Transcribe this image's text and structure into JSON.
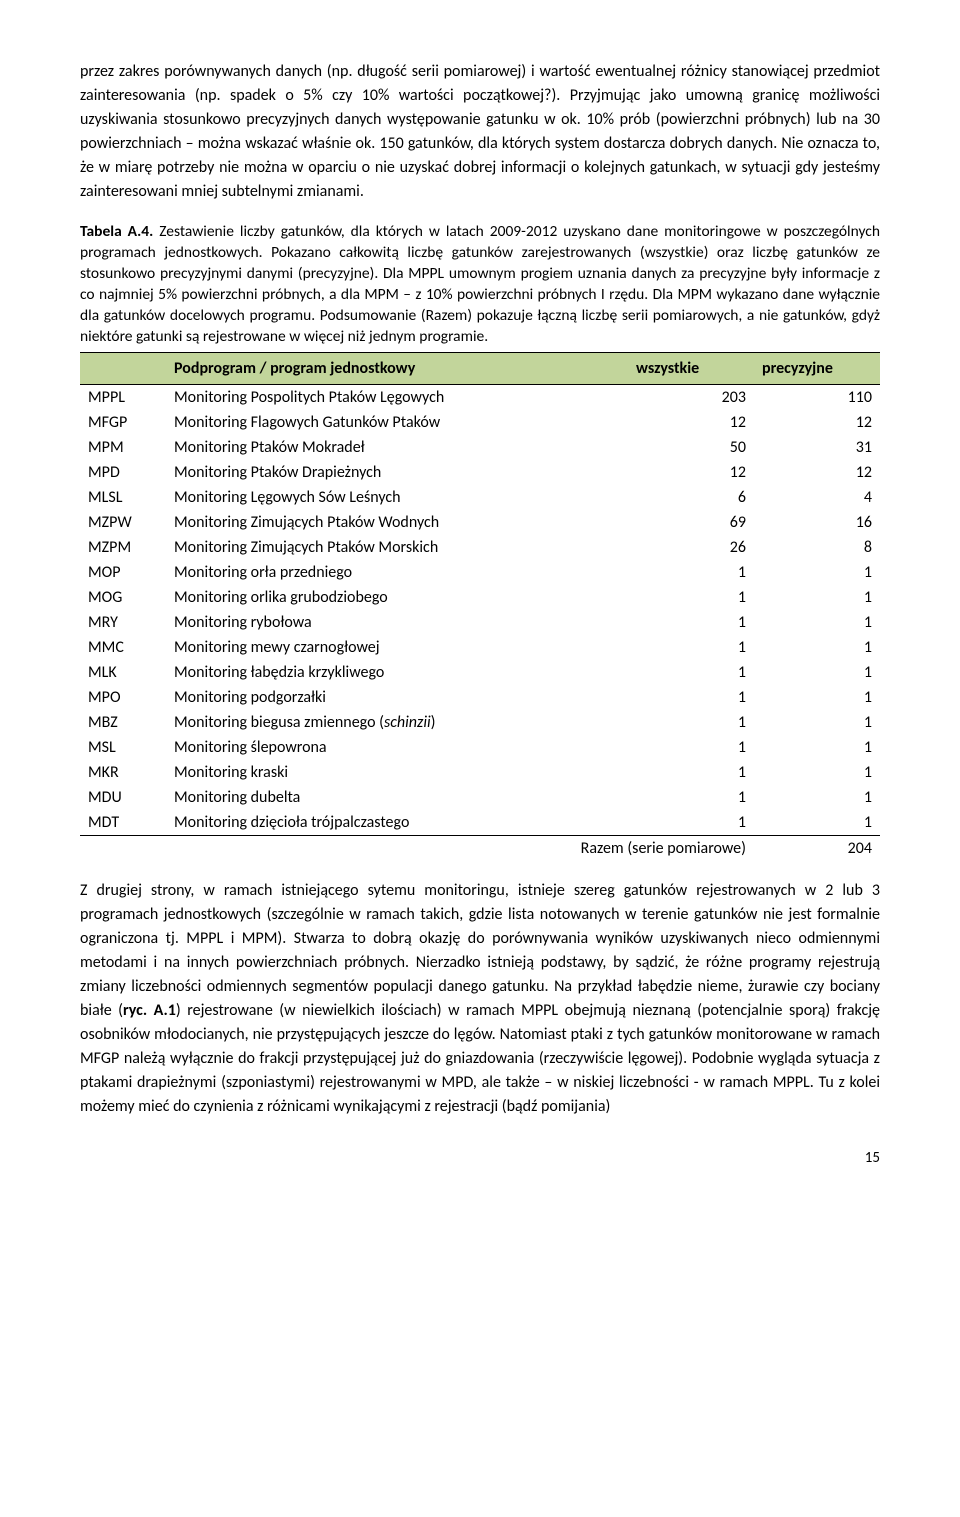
{
  "para1": "przez zakres porównywanych danych (np. długość serii pomiarowej) i wartość ewentualnej różnicy stanowiącej przedmiot zainteresowania (np. spadek o 5% czy 10% wartości początkowej?). Przyjmując jako umowną granicę możliwości uzyskiwania stosunkowo precyzyjnych danych występowanie gatunku w ok. 10% prób (powierzchni próbnych) lub na 30 powierzchniach – można wskazać właśnie ok. 150 gatunków, dla których system dostarcza dobrych danych. Nie oznacza to, że w miarę potrzeby nie można w oparciu o nie uzyskać dobrej informacji o kolejnych gatunkach, w sytuacji gdy jesteśmy zainteresowani mniej subtelnymi zmianami.",
  "caption_bold": "Tabela A.4.",
  "caption_rest": " Zestawienie liczby gatunków, dla których w latach 2009-2012 uzyskano dane monitoringowe w poszczególnych programach jednostkowych. Pokazano całkowitą liczbę gatunków zarejestrowanych (wszystkie) oraz liczbę gatunków ze stosunkowo precyzyjnymi danymi (precyzyjne). Dla MPPL umownym progiem uznania danych za precyzyjne były informacje z co najmniej 5% powierzchni próbnych, a dla MPM – z 10% powierzchni próbnych I rzędu. Dla MPM wykazano dane wyłącznie dla gatunków docelowych programu. Podsumowanie (Razem) pokazuje łączną liczbę serii pomiarowych, a nie gatunków, gdyż niektóre gatunki są rejestrowane w więcej niż jednym programie.",
  "table": {
    "header_bg": "#c2d59b",
    "columns": [
      "",
      "Podprogram / program jednostkowy",
      "wszystkie",
      "precyzyjne"
    ],
    "rows": [
      {
        "code": "MPPL",
        "name": "Monitoring Pospolitych Ptaków Lęgowych",
        "all": "203",
        "prec": "110"
      },
      {
        "code": "MFGP",
        "name": "Monitoring Flagowych Gatunków Ptaków",
        "all": "12",
        "prec": "12"
      },
      {
        "code": "MPM",
        "name": "Monitoring Ptaków Mokradeł",
        "all": "50",
        "prec": "31"
      },
      {
        "code": "MPD",
        "name": "Monitoring Ptaków Drapieżnych",
        "all": "12",
        "prec": "12"
      },
      {
        "code": "MLSL",
        "name": "Monitoring Lęgowych Sów Leśnych",
        "all": "6",
        "prec": "4"
      },
      {
        "code": "MZPW",
        "name": "Monitoring Zimujących Ptaków Wodnych",
        "all": "69",
        "prec": "16"
      },
      {
        "code": "MZPM",
        "name": "Monitoring Zimujących Ptaków Morskich",
        "all": "26",
        "prec": "8"
      },
      {
        "code": "MOP",
        "name": "Monitoring orła przedniego",
        "all": "1",
        "prec": "1"
      },
      {
        "code": "MOG",
        "name": "Monitoring orlika grubodziobego",
        "all": "1",
        "prec": "1"
      },
      {
        "code": "MRY",
        "name": "Monitoring rybołowa",
        "all": "1",
        "prec": "1"
      },
      {
        "code": "MMC",
        "name": "Monitoring mewy czarnogłowej",
        "all": "1",
        "prec": "1"
      },
      {
        "code": "MLK",
        "name": "Monitoring łabędzia krzykliwego",
        "all": "1",
        "prec": "1"
      },
      {
        "code": "MPO",
        "name": "Monitoring podgorzałki",
        "all": "1",
        "prec": "1"
      },
      {
        "code": "MBZ",
        "name_pre": "Monitoring biegusa zmiennego (",
        "name_it": "schinzii",
        "name_post": ")",
        "all": "1",
        "prec": "1",
        "italic": true
      },
      {
        "code": "MSL",
        "name": "Monitoring ślepowrona",
        "all": "1",
        "prec": "1"
      },
      {
        "code": "MKR",
        "name": "Monitoring kraski",
        "all": "1",
        "prec": "1"
      },
      {
        "code": "MDU",
        "name": "Monitoring dubelta",
        "all": "1",
        "prec": "1"
      },
      {
        "code": "MDT",
        "name": "Monitoring dzięcioła trójpalczastego",
        "all": "1",
        "prec": "1"
      }
    ],
    "sum_label": "Razem (serie pomiarowe)",
    "sum_value": "204"
  },
  "para2_pre": "Z drugiej strony, w ramach istniejącego sytemu monitoringu, istnieje szereg gatunków rejestrowanych w 2 lub 3 programach jednostkowych (szczególnie w ramach takich, gdzie lista notowanych w terenie gatunków nie jest formalnie ograniczona tj. MPPL i MPM). Stwarza to dobrą okazję do porównywania wyników uzyskiwanych nieco odmiennymi metodami i na innych powierzchniach próbnych. Nierzadko istnieją podstawy, by sądzić, że różne programy rejestrują zmiany liczebności odmiennych segmentów populacji danego gatunku. Na przykład łabędzie nieme, żurawie czy bociany białe (",
  "para2_bold": "ryc. A.1",
  "para2_post": ") rejestrowane (w niewielkich ilościach) w ramach MPPL obejmują nieznaną (potencjalnie sporą) frakcję osobników młodocianych, nie przystępujących jeszcze do lęgów. Natomiast ptaki z tych gatunków monitorowane w ramach MFGP należą wyłącznie do frakcji przystępującej już do gniazdowania (rzeczywiście lęgowej). Podobnie wygląda sytuacja z ptakami drapieżnymi (szponiastymi) rejestrowanymi w MPD, ale także – w niskiej liczebności - w ramach MPPL. Tu z kolei możemy mieć do czynienia z różnicami wynikającymi z rejestracji (bądź pomijania)",
  "page_number": "15"
}
